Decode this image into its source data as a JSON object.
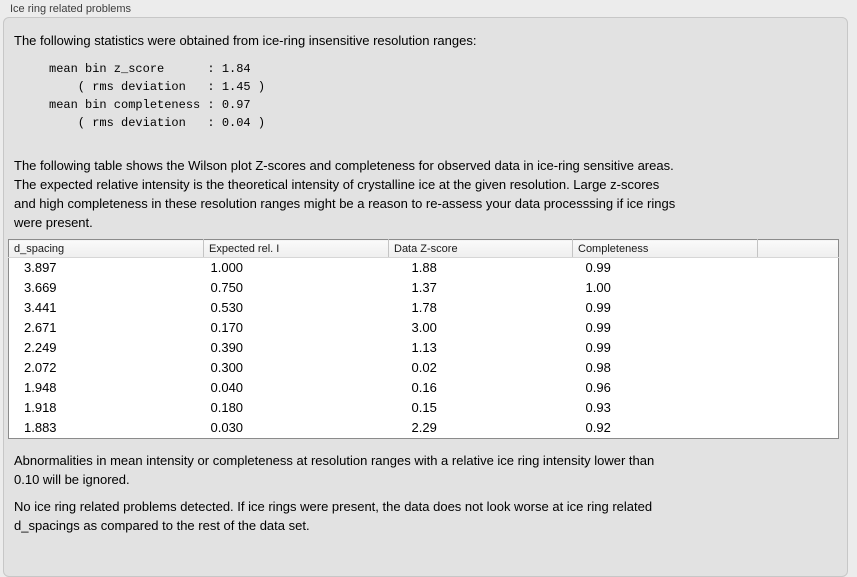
{
  "panel": {
    "title": "Ice ring related problems",
    "intro": "The following statistics were obtained from ice-ring insensitive resolution ranges:",
    "stats_lines": [
      "mean bin z_score      : 1.84",
      "    ( rms deviation   : 1.45 )",
      "mean bin completeness : 0.97",
      "    ( rms deviation   : 0.04 )"
    ],
    "table_description": [
      "The following table shows the Wilson plot Z-scores and completeness for observed data in ice-ring sensitive areas.",
      "The expected relative intensity is the theoretical intensity of crystalline ice at the given resolution. Large z-scores",
      "and high completeness in these resolution ranges might be a reason to re-assess your data processsing if ice rings",
      "were present."
    ],
    "ignore_note": [
      "Abnormalities in mean intensity or completeness at resolution ranges with a relative ice ring intensity lower than",
      "0.10 will be ignored."
    ],
    "conclusion": [
      "No ice ring related problems detected. If ice rings were present, the data does not look worse at ice ring related",
      "d_spacings as compared to the rest of the data set."
    ]
  },
  "table": {
    "columns": [
      "d_spacing",
      "Expected rel. I",
      "Data Z-score",
      "Completeness",
      ""
    ],
    "rows": [
      [
        "3.897",
        "1.000",
        "1.88",
        "0.99"
      ],
      [
        "3.669",
        "0.750",
        "1.37",
        "1.00"
      ],
      [
        "3.441",
        "0.530",
        "1.78",
        "0.99"
      ],
      [
        "2.671",
        "0.170",
        "3.00",
        "0.99"
      ],
      [
        "2.249",
        "0.390",
        "1.13",
        "0.99"
      ],
      [
        "2.072",
        "0.300",
        "0.02",
        "0.98"
      ],
      [
        "1.948",
        "0.040",
        "0.16",
        "0.96"
      ],
      [
        "1.918",
        "0.180",
        "0.15",
        "0.93"
      ],
      [
        "1.883",
        "0.030",
        "2.29",
        "0.92"
      ]
    ]
  },
  "colors": {
    "outer_background": "#ececec",
    "panel_background": "#e2e2e2",
    "table_border": "#8b8b8b",
    "table_header_background": "#f4f4f4"
  }
}
